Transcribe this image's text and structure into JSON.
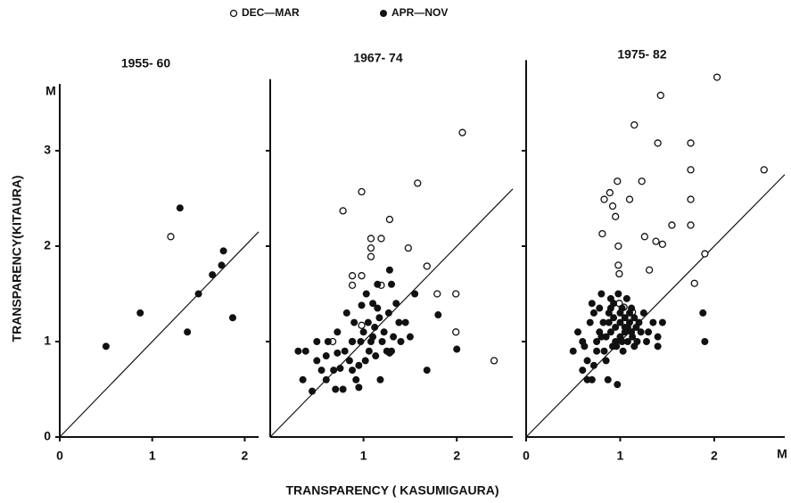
{
  "legend": [
    {
      "name": "DEC—MAR",
      "style": "open"
    },
    {
      "name": "APR—NOV",
      "style": "filled"
    }
  ],
  "x_label": "TRANSPARENCY ( KASUMIGAURA)",
  "y_label": "TRANSPARENCY(KITAURA)",
  "y_unit": "M",
  "x_unit": "M",
  "chart_data": [
    {
      "type": "scatter",
      "title": "1955- 60",
      "xlim": [
        0,
        2.15
      ],
      "ylim": [
        0,
        3.7
      ],
      "xticks": [
        0,
        1,
        2
      ],
      "yticks": [
        0,
        1,
        2,
        3
      ],
      "ytick_labels": true,
      "diagonal": true,
      "series": [
        {
          "style": "open",
          "x": [
            1.2
          ],
          "y": [
            2.1
          ]
        },
        {
          "style": "filled",
          "x": [
            0.5,
            0.87,
            1.3,
            1.38,
            1.5,
            1.65,
            1.75,
            1.77,
            1.87
          ],
          "y": [
            0.95,
            1.3,
            2.4,
            1.1,
            1.5,
            1.7,
            1.8,
            1.95,
            1.25
          ]
        }
      ]
    },
    {
      "type": "scatter",
      "title": "1967- 74",
      "xlim": [
        0,
        2.6
      ],
      "ylim": [
        0,
        3.75
      ],
      "xticks": [
        1,
        2
      ],
      "yticks": [
        1,
        2,
        3
      ],
      "ytick_labels": false,
      "diagonal": true,
      "series": [
        {
          "style": "open",
          "x": [
            2.06,
            0.98,
            0.78,
            1.58,
            1.28,
            1.08,
            1.19,
            1.08,
            1.08,
            1.48,
            1.68,
            0.88,
            0.98,
            0.88,
            1.19,
            1.79,
            1.99,
            1.99,
            2.4,
            0.67,
            0.88,
            0.98
          ],
          "y": [
            3.19,
            2.57,
            2.37,
            2.66,
            2.28,
            2.08,
            2.08,
            1.98,
            1.89,
            1.98,
            1.79,
            1.69,
            1.69,
            1.59,
            1.59,
            1.5,
            1.5,
            1.1,
            0.8,
            1.0,
            1.0,
            1.17
          ]
        },
        {
          "style": "filled",
          "x": [
            0.3,
            0.35,
            0.38,
            0.45,
            0.5,
            0.55,
            0.6,
            0.62,
            0.68,
            0.7,
            0.72,
            0.75,
            0.78,
            0.8,
            0.82,
            0.85,
            0.88,
            0.9,
            0.92,
            0.95,
            0.97,
            0.98,
            1.0,
            1.02,
            1.03,
            1.05,
            1.06,
            1.08,
            1.1,
            1.12,
            1.13,
            1.15,
            1.17,
            1.18,
            1.2,
            1.22,
            1.25,
            1.27,
            1.28,
            1.3,
            1.32,
            1.35,
            1.38,
            1.4,
            1.45,
            1.5,
            1.55,
            1.68,
            1.8,
            2.0,
            1.28,
            1.3,
            0.6,
            0.95,
            1.1,
            1.15,
            0.5,
            0.72,
            0.88
          ],
          "y": [
            0.9,
            0.6,
            0.9,
            0.48,
            0.8,
            0.7,
            0.6,
            1.0,
            0.7,
            0.5,
            1.1,
            0.72,
            0.5,
            0.9,
            1.3,
            0.8,
            1.0,
            1.2,
            0.6,
            0.52,
            1.0,
            1.38,
            1.1,
            0.8,
            1.5,
            1.2,
            0.9,
            1.0,
            1.4,
            1.15,
            0.85,
            1.6,
            1.25,
            0.6,
            1.0,
            1.1,
            0.9,
            1.3,
            1.75,
            0.9,
            1.05,
            1.4,
            1.2,
            1.0,
            1.2,
            1.05,
            1.5,
            0.7,
            1.28,
            0.92,
            0.88,
            1.6,
            0.85,
            0.75,
            1.05,
            1.35,
            1.0,
            0.88,
            0.7
          ]
        }
      ]
    },
    {
      "type": "scatter",
      "title": "1975- 82",
      "xlim": [
        0,
        2.75
      ],
      "ylim": [
        0,
        3.95
      ],
      "xticks": [
        0,
        1,
        2
      ],
      "yticks": [
        1,
        2,
        3
      ],
      "ytick_labels": false,
      "diagonal": true,
      "series": [
        {
          "style": "open",
          "x": [
            2.03,
            1.43,
            1.15,
            1.4,
            1.75,
            1.75,
            2.53,
            1.23,
            0.97,
            0.89,
            1.1,
            0.83,
            0.92,
            0.95,
            0.81,
            0.98,
            1.26,
            1.38,
            1.45,
            1.55,
            1.75,
            1.75,
            0.98,
            0.99,
            1.31,
            1.9,
            1.79,
            0.99,
            1.04,
            1.13
          ],
          "y": [
            3.77,
            3.58,
            3.27,
            3.08,
            3.08,
            2.8,
            2.8,
            2.68,
            2.68,
            2.56,
            2.49,
            2.49,
            2.42,
            2.31,
            2.13,
            2.0,
            2.1,
            2.05,
            2.02,
            2.22,
            2.49,
            2.22,
            1.8,
            1.71,
            1.75,
            1.92,
            1.61,
            1.4,
            1.36,
            1.31
          ]
        },
        {
          "style": "filled",
          "x": [
            0.5,
            0.55,
            0.6,
            0.62,
            0.65,
            0.68,
            0.7,
            0.72,
            0.75,
            0.78,
            0.8,
            0.82,
            0.83,
            0.85,
            0.87,
            0.88,
            0.9,
            0.9,
            0.92,
            0.93,
            0.95,
            0.95,
            0.97,
            0.98,
            1.0,
            1.0,
            1.02,
            1.03,
            1.05,
            1.05,
            1.07,
            1.08,
            1.1,
            1.1,
            1.12,
            1.13,
            1.15,
            1.17,
            1.2,
            1.22,
            1.25,
            1.28,
            1.3,
            1.35,
            1.4,
            1.45,
            1.88,
            1.9,
            0.72,
            0.78,
            0.85,
            0.9,
            0.96,
            1.0,
            1.05,
            1.12,
            1.18,
            0.6,
            0.7,
            0.8,
            0.88,
            0.93,
            1.02,
            1.08,
            1.15,
            1.4,
            0.65,
            0.75
          ],
          "y": [
            0.9,
            1.1,
            0.7,
            0.95,
            0.6,
            1.2,
            0.6,
            0.75,
            1.0,
            1.35,
            1.5,
            1.2,
            0.9,
            1.05,
            0.6,
            1.3,
            1.1,
            1.45,
            0.95,
            1.25,
            1.0,
            1.15,
            0.55,
            1.5,
            1.2,
            1.05,
            1.35,
            0.9,
            1.1,
            1.25,
            1.45,
            1.0,
            1.2,
            1.3,
            1.1,
            1.05,
            1.25,
            1.15,
            1.2,
            1.1,
            1.3,
            1.0,
            1.1,
            1.2,
            1.05,
            1.2,
            1.3,
            1.0,
            1.3,
            1.1,
            0.8,
            1.35,
            0.95,
            1.3,
            1.15,
            1.35,
            1.0,
            1.0,
            1.4,
            1.05,
            1.2,
            1.4,
            1.0,
            1.15,
            0.95,
            0.95,
            0.8,
            0.9
          ]
        }
      ]
    }
  ]
}
